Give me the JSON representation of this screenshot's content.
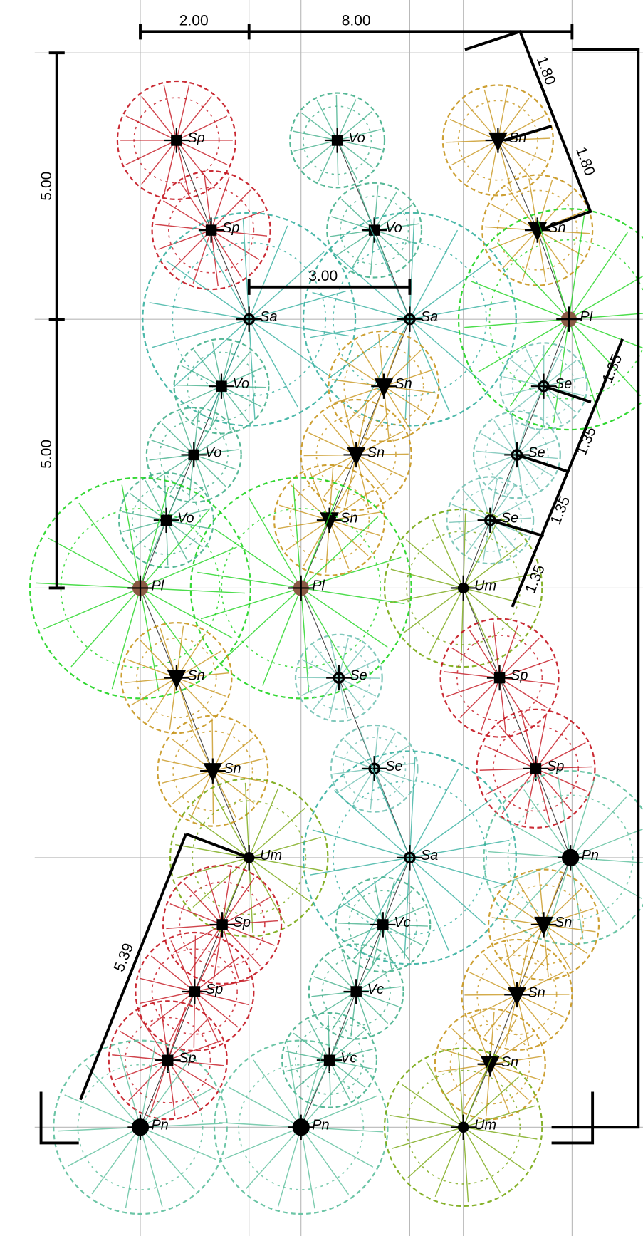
{
  "dimensions": [
    "2.00",
    "8.00",
    "1.80",
    "1.80",
    "5.00",
    "5.00",
    "3.00",
    "1.35",
    "1.35",
    "1.35",
    "1.35",
    "5.39"
  ],
  "plants": [
    "Sp",
    "Sp",
    "Vo",
    "Vo",
    "Sn",
    "Sn",
    "Sa",
    "Sa",
    "Pl",
    "Vo",
    "Sn",
    "Se",
    "Vo",
    "Sn",
    "Se",
    "Vo",
    "Sn",
    "Se",
    "Pl",
    "Pl",
    "Um",
    "Sn",
    "Se",
    "Sp",
    "Sn",
    "Se",
    "Sp",
    "Pn",
    "Um",
    "Sa",
    "Sp",
    "Vc",
    "Sn",
    "Sp",
    "Vc",
    "Sn",
    "Sp",
    "Vc",
    "Sn",
    "Pn",
    "Pn",
    "Um"
  ]
}
